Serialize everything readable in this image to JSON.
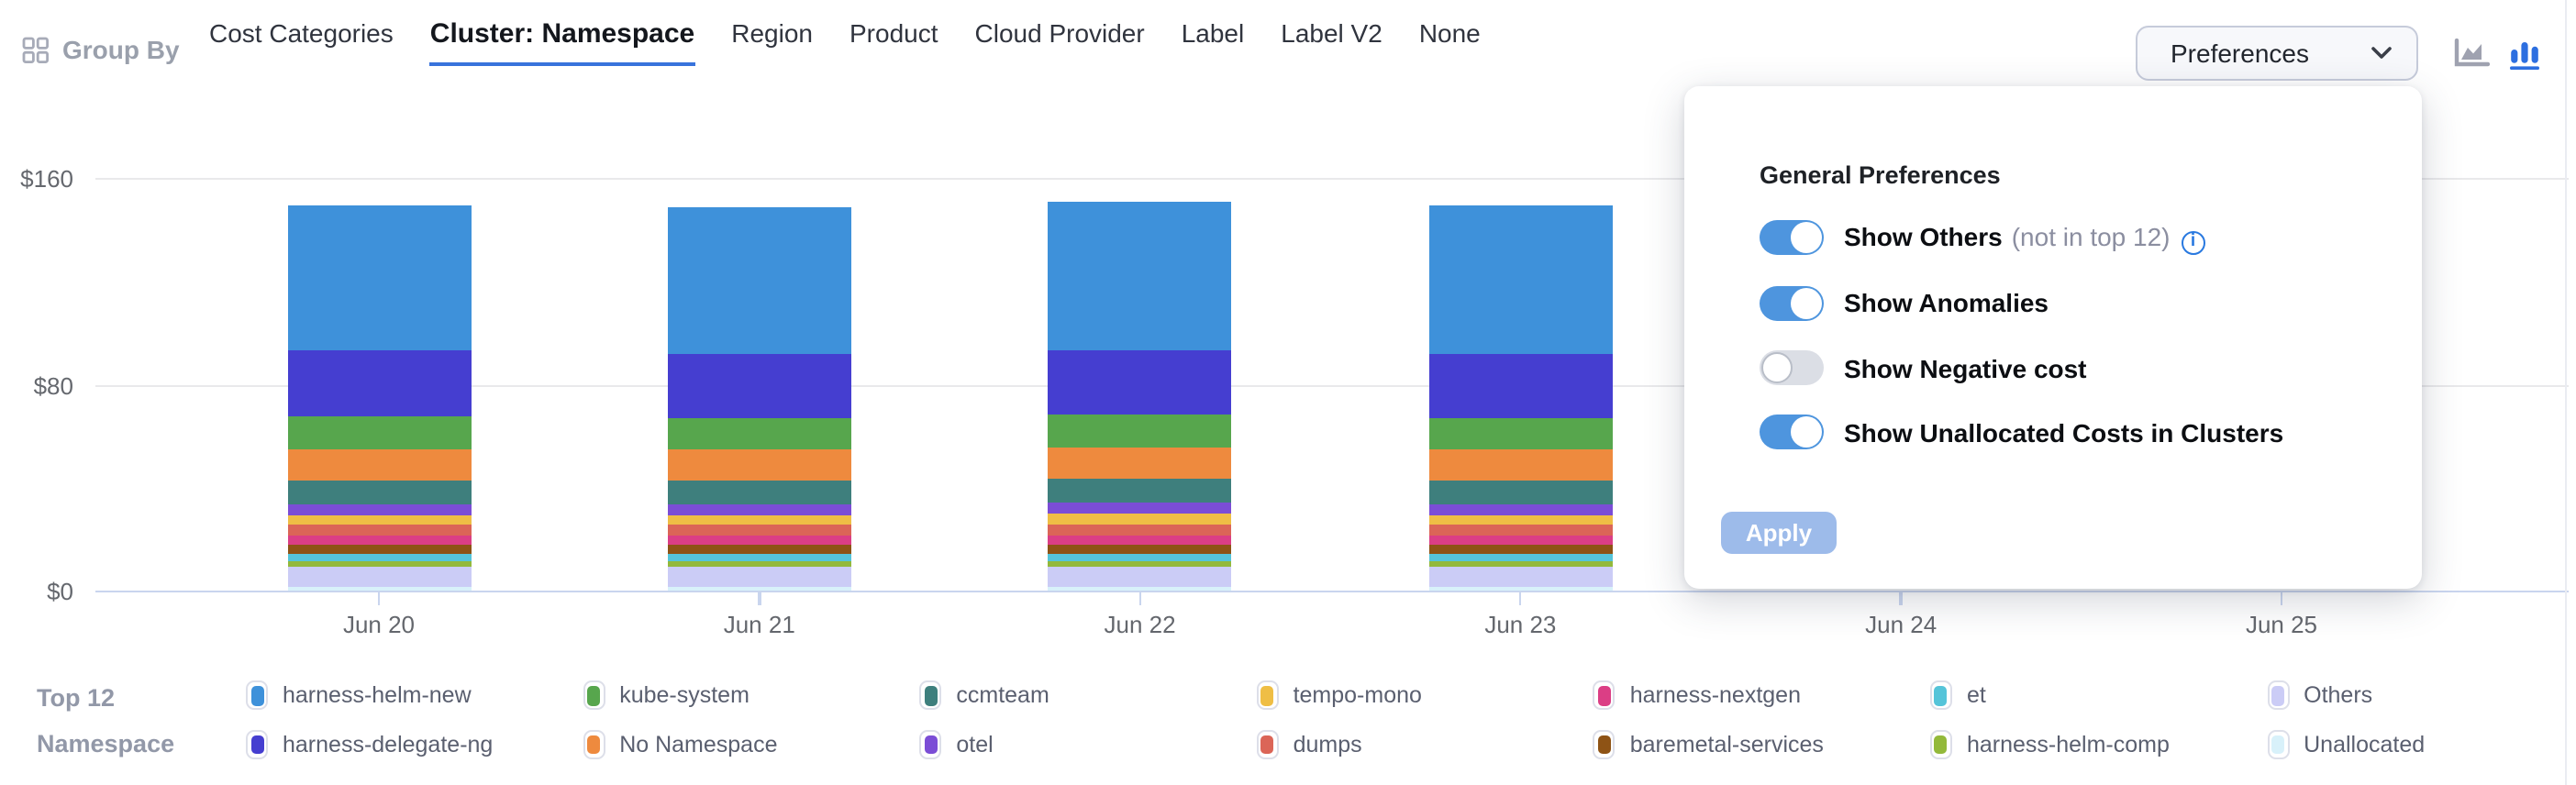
{
  "header": {
    "group_by_label": "Group By",
    "tabs": [
      {
        "label": "Cost Categories",
        "active": false
      },
      {
        "label": "Cluster: Namespace",
        "active": true
      },
      {
        "label": "Region",
        "active": false
      },
      {
        "label": "Product",
        "active": false
      },
      {
        "label": "Cloud Provider",
        "active": false
      },
      {
        "label": "Label",
        "active": false
      },
      {
        "label": "Label V2",
        "active": false
      },
      {
        "label": "None",
        "active": false
      }
    ],
    "preferences_button_label": "Preferences",
    "chart_view_icons": [
      {
        "name": "area-chart-icon",
        "active": false
      },
      {
        "name": "bar-chart-icon",
        "active": true
      }
    ]
  },
  "preferences_panel": {
    "title": "General Preferences",
    "options": [
      {
        "label": "Show Others",
        "suffix": "(not in top 12)",
        "has_info_icon": true,
        "enabled": true
      },
      {
        "label": "Show Anomalies",
        "suffix": "",
        "has_info_icon": false,
        "enabled": true
      },
      {
        "label": "Show Negative cost",
        "suffix": "",
        "has_info_icon": false,
        "enabled": false
      },
      {
        "label": "Show Unallocated Costs in Clusters",
        "suffix": "",
        "has_info_icon": false,
        "enabled": true
      }
    ],
    "apply_label": "Apply"
  },
  "legend": {
    "title_lines": [
      "Top 12",
      "Namespace"
    ]
  },
  "colors": {
    "tab_underline": "#3873DC",
    "toggle_on": "#4E95DE",
    "toggle_off": "#DBDEE5",
    "apply_button": "#9DBBEA",
    "bar_chart_icon_active": "#2D6FE0",
    "area_chart_icon": "#9FA2B0",
    "axis_line": "#C9D5EE",
    "gridline": "#E9E9EB",
    "info_icon": "#2979E0"
  },
  "chart_data": {
    "type": "bar",
    "stacked": true,
    "title": "",
    "categories": [
      "Jun 20",
      "Jun 21",
      "Jun 22",
      "Jun 23",
      "Jun 24",
      "Jun 25"
    ],
    "y_ticks": [
      "$0",
      "$80",
      "$160"
    ],
    "ylim": [
      0,
      160
    ],
    "y_unit": "$",
    "grid": true,
    "legend_position": "bottom",
    "series": [
      {
        "name": "harness-helm-new",
        "color": "#3E91DA",
        "values": [
          56.5,
          56.5,
          57.5,
          58,
          null,
          null
        ]
      },
      {
        "name": "harness-delegate-ng",
        "color": "#453ED0",
        "values": [
          25.5,
          25,
          25,
          24.5,
          null,
          null
        ]
      },
      {
        "name": "kube-system",
        "color": "#57A64D",
        "values": [
          12.7,
          12.6,
          12.8,
          12.6,
          null,
          null
        ]
      },
      {
        "name": "No Namespace",
        "color": "#EE8A3E",
        "values": [
          11.8,
          11.7,
          11.9,
          11.7,
          null,
          null
        ]
      },
      {
        "name": "ccmteam",
        "color": "#3E7F7D",
        "values": [
          9.3,
          9.2,
          9.4,
          9.2,
          null,
          null
        ]
      },
      {
        "name": "otel",
        "color": "#7B4DD6",
        "values": [
          4.4,
          4.4,
          4.5,
          4.4,
          null,
          null
        ]
      },
      {
        "name": "tempo-mono",
        "color": "#EFBE45",
        "values": [
          3.7,
          3.7,
          3.8,
          3.7,
          null,
          null
        ]
      },
      {
        "name": "dumps",
        "color": "#DB6557",
        "values": [
          4.3,
          4.3,
          4.4,
          4.3,
          null,
          null
        ]
      },
      {
        "name": "harness-nextgen",
        "color": "#DB3E85",
        "values": [
          3.6,
          3.6,
          3.7,
          3.6,
          null,
          null
        ]
      },
      {
        "name": "baremetal-services",
        "color": "#8E5315",
        "values": [
          3.5,
          3.4,
          3.5,
          3.4,
          null,
          null
        ]
      },
      {
        "name": "et",
        "color": "#55C4D9",
        "values": [
          2.7,
          2.7,
          2.7,
          2.7,
          null,
          null
        ]
      },
      {
        "name": "harness-helm-comp",
        "color": "#93B93B",
        "values": [
          2.5,
          2.5,
          2.5,
          2.5,
          null,
          null
        ]
      },
      {
        "name": "Others",
        "color": "#CBCCF6",
        "values": [
          7.3,
          7.3,
          7.4,
          7.3,
          null,
          null
        ]
      },
      {
        "name": "Unallocated",
        "color": "#D8F1FA",
        "values": [
          1.3,
          1.3,
          1.3,
          1.3,
          null,
          null
        ]
      }
    ]
  }
}
